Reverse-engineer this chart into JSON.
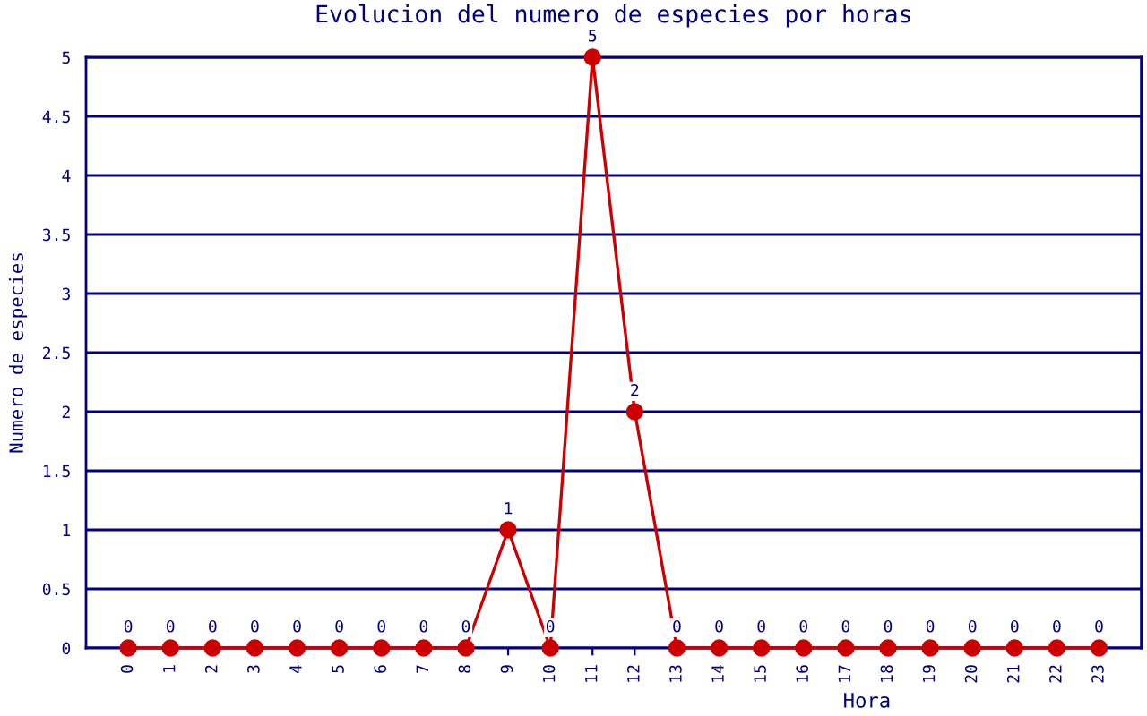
{
  "chart_data": {
    "type": "line",
    "title": "Evolucion del numero de especies por horas",
    "xlabel": "Hora",
    "ylabel": "Numero de especies",
    "categories": [
      "0",
      "1",
      "2",
      "3",
      "4",
      "5",
      "6",
      "7",
      "8",
      "9",
      "10",
      "11",
      "12",
      "13",
      "14",
      "15",
      "16",
      "17",
      "18",
      "19",
      "20",
      "21",
      "22",
      "23"
    ],
    "series": [
      {
        "color": "#cc0000",
        "values": [
          0,
          0,
          0,
          0,
          0,
          0,
          0,
          0,
          0,
          1,
          0,
          5,
          2,
          0,
          0,
          0,
          0,
          0,
          0,
          0,
          0,
          0,
          0,
          0
        ]
      }
    ],
    "ylim": [
      0,
      5
    ],
    "yticks": [
      0,
      0.5,
      1,
      1.5,
      2,
      2.5,
      3,
      3.5,
      4,
      4.5,
      5
    ],
    "grid": "y",
    "marker": "circle",
    "line_style": "solid",
    "data_labels": true
  }
}
